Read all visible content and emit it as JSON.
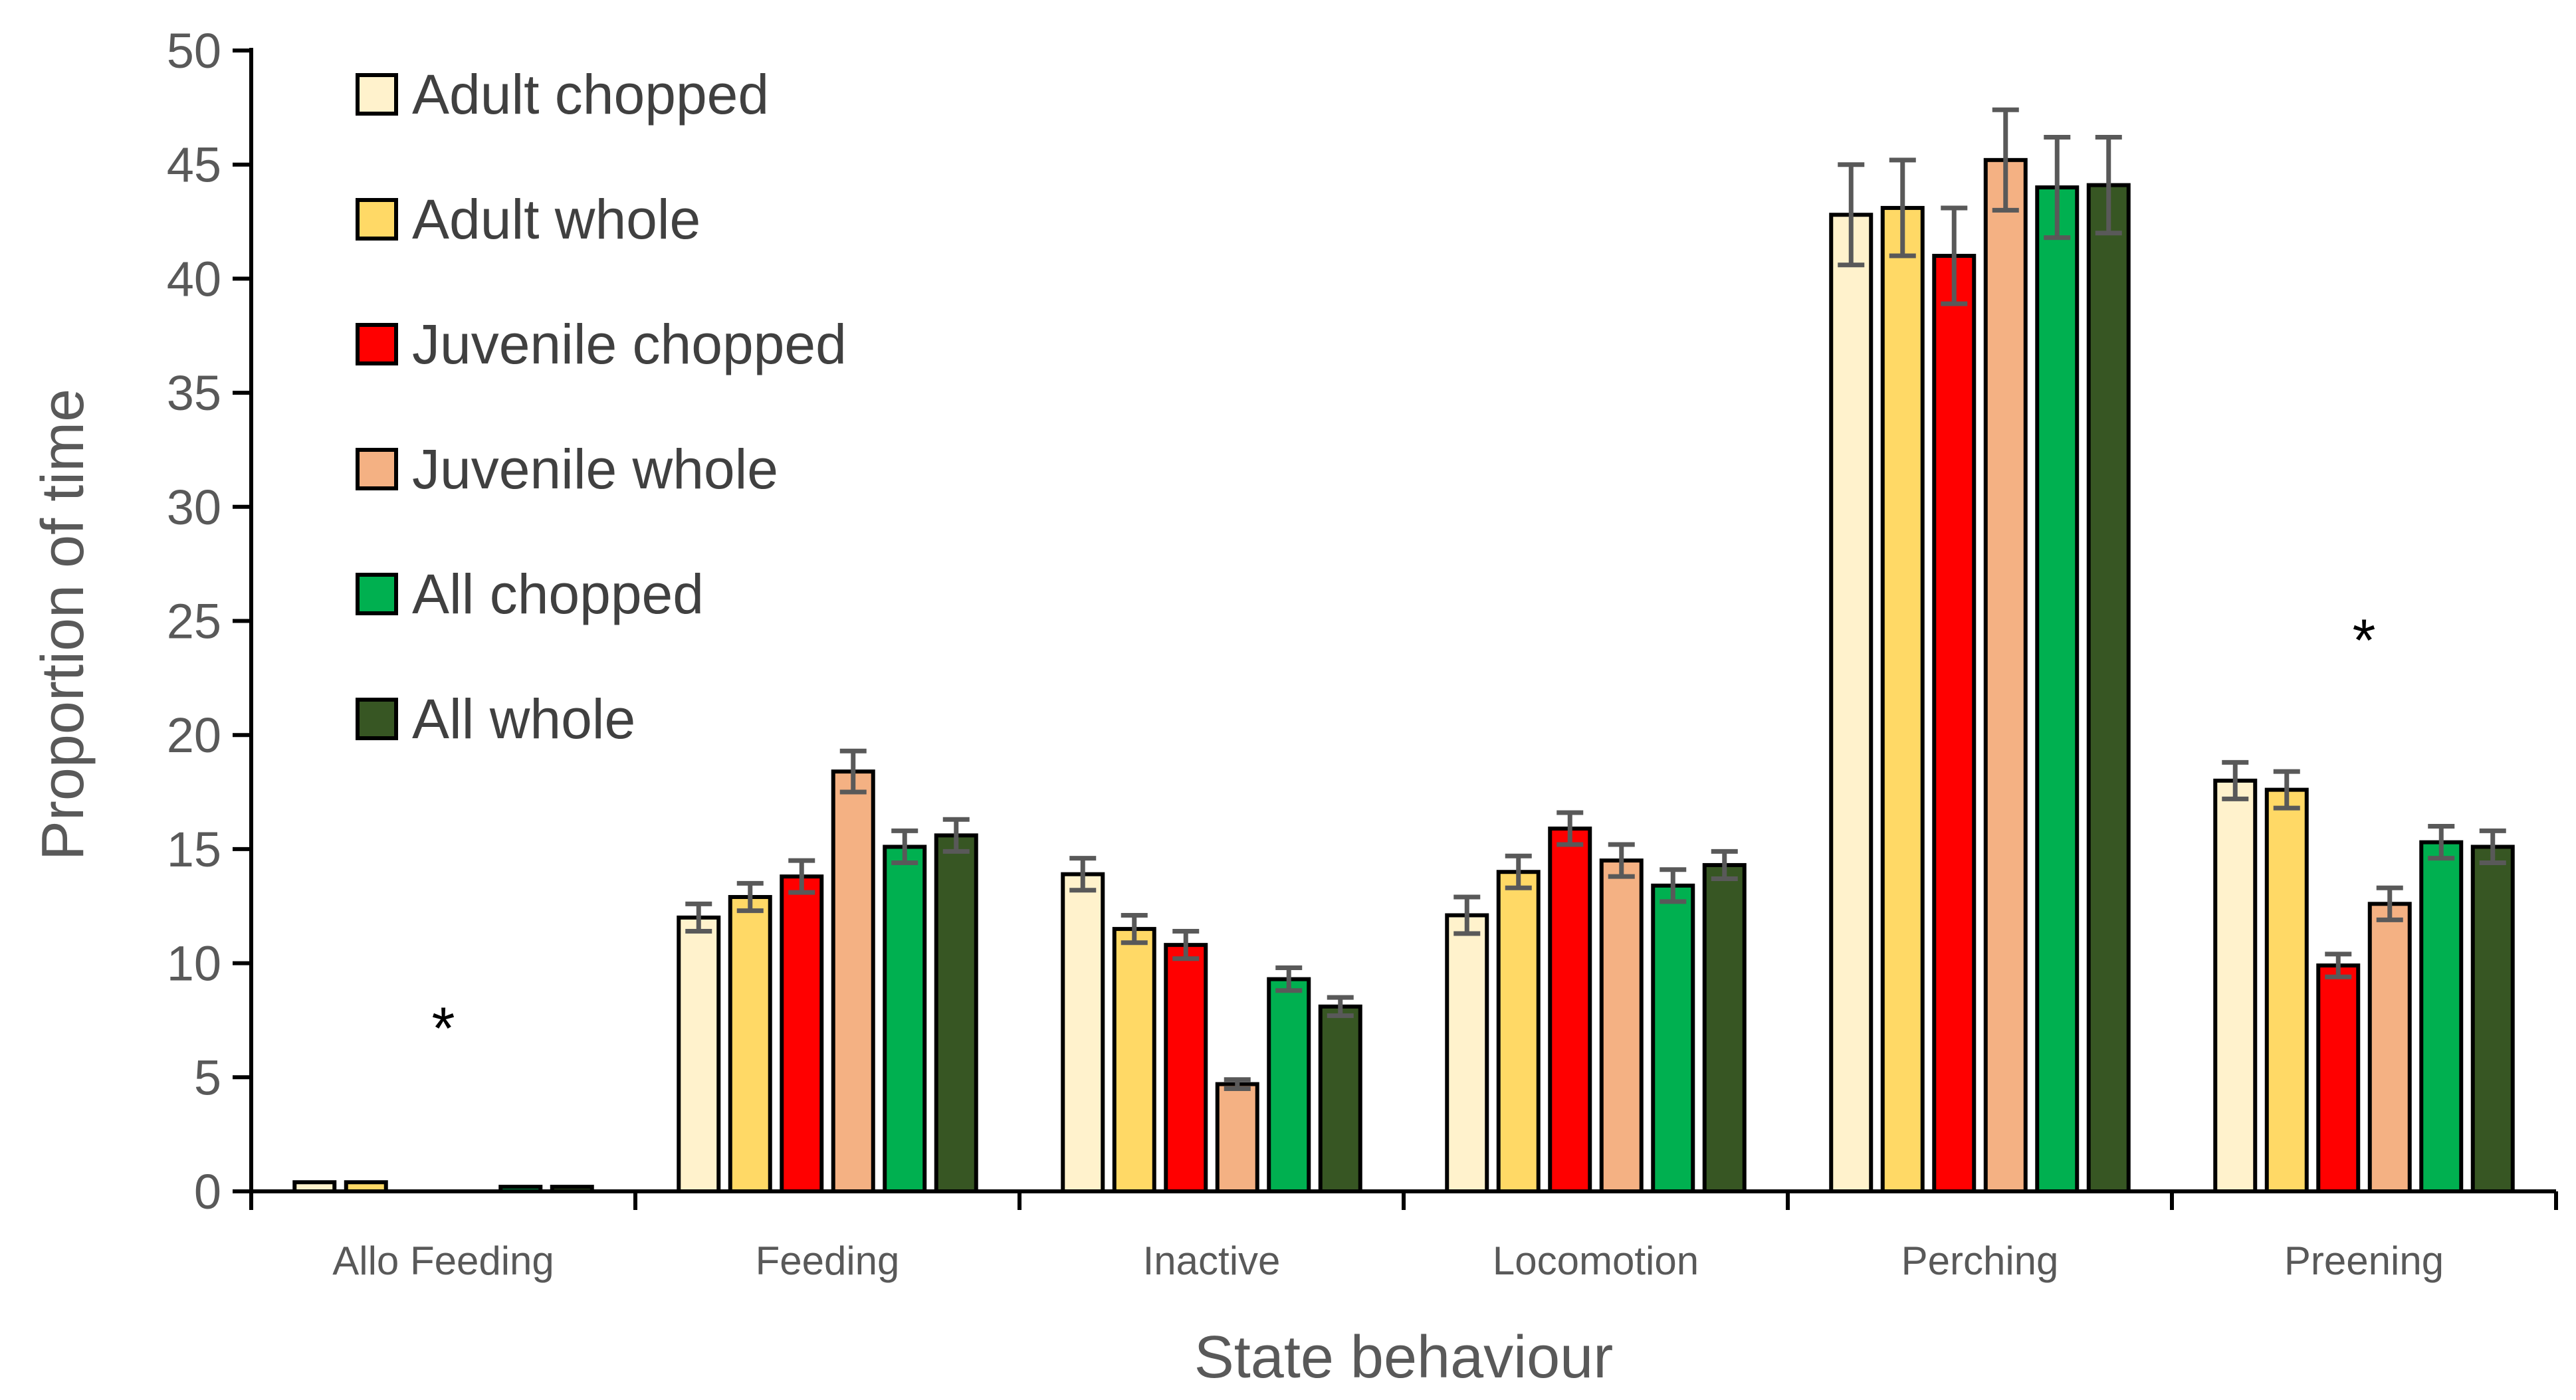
{
  "chart_data": {
    "type": "bar",
    "title": "",
    "xlabel": "State behaviour",
    "ylabel": "Proportion of time",
    "ylim": [
      0,
      50
    ],
    "yticks": [
      0,
      5,
      10,
      15,
      20,
      25,
      30,
      35,
      40,
      45,
      50
    ],
    "grid": false,
    "legend_position": "top-left",
    "categories": [
      "Allo Feeding",
      "Feeding",
      "Inactive",
      "Locomotion",
      "Perching",
      "Preening"
    ],
    "series": [
      {
        "name": "Adult chopped",
        "color": "#FFF2CC",
        "values": [
          0.4,
          12.0,
          13.9,
          12.1,
          42.8,
          18.0
        ],
        "errors": [
          0.0,
          0.6,
          0.7,
          0.8,
          2.2,
          0.8
        ]
      },
      {
        "name": "Adult whole",
        "color": "#FFD966",
        "values": [
          0.4,
          12.9,
          11.5,
          14.0,
          43.1,
          17.6
        ],
        "errors": [
          0.0,
          0.6,
          0.6,
          0.7,
          2.1,
          0.8
        ]
      },
      {
        "name": "Juvenile chopped",
        "color": "#FF0000",
        "values": [
          0.0,
          13.8,
          10.8,
          15.9,
          41.0,
          9.9
        ],
        "errors": [
          0.0,
          0.7,
          0.6,
          0.7,
          2.1,
          0.5
        ]
      },
      {
        "name": "Juvenile whole",
        "color": "#F4B183",
        "values": [
          0.0,
          18.4,
          4.7,
          14.5,
          45.2,
          12.6
        ],
        "errors": [
          0.0,
          0.9,
          0.2,
          0.7,
          2.2,
          0.7
        ]
      },
      {
        "name": "All chopped",
        "color": "#00B050",
        "values": [
          0.2,
          15.1,
          9.3,
          13.4,
          44.0,
          15.3
        ],
        "errors": [
          0.0,
          0.7,
          0.5,
          0.7,
          2.2,
          0.7
        ]
      },
      {
        "name": "All whole",
        "color": "#375623",
        "values": [
          0.2,
          15.6,
          8.1,
          14.3,
          44.1,
          15.1
        ],
        "errors": [
          0.0,
          0.7,
          0.4,
          0.6,
          2.1,
          0.7
        ]
      }
    ],
    "annotations": [
      {
        "text": "*",
        "category": "Allo Feeding",
        "y": 8
      },
      {
        "text": "*",
        "category": "Preening",
        "y": 25
      }
    ]
  }
}
